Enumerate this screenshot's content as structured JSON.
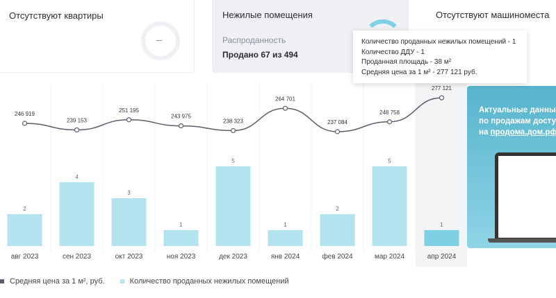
{
  "cards": [
    {
      "title": "Отсутствуют квартиры",
      "ring_value": "–"
    },
    {
      "title": "Нежилые помещения",
      "subtitle": "Распроданность",
      "sold": "Продано 67 из 494",
      "sold_fraction": 0.136
    },
    {
      "title": "Отсутствуют машиноместа"
    }
  ],
  "tooltip": {
    "lines": [
      "Количество проданных нежилых помещений - 1",
      "Количество ДДУ - 1",
      "Проданная площадь - 38 м²",
      "Средняя цена за 1 м² - 277 121 руб."
    ]
  },
  "promo": {
    "line1": "Актуальные данные",
    "line2": "по продажам доступ",
    "line3_prefix": "на ",
    "link": "продома.дом.рф"
  },
  "chart_data": {
    "type": "bar+line",
    "categories": [
      "авг 2023",
      "сен 2023",
      "окт 2023",
      "ноя 2023",
      "дек 2023",
      "янв 2024",
      "фев 2024",
      "мар 2024",
      "апр 2024"
    ],
    "series": [
      {
        "name": "Средняя цена за 1 м², руб.",
        "type": "line",
        "values": [
          246919,
          239153,
          251195,
          243975,
          238323,
          264701,
          237084,
          248758,
          277121
        ],
        "labels": [
          "246 919",
          "239 153",
          "251 195",
          "243 975",
          "238 323",
          "264 701",
          "237 084",
          "248 758",
          "277 121"
        ],
        "color": "#5b5d6b"
      },
      {
        "name": "Количество проданных нежилых помещений",
        "type": "bar",
        "values": [
          2,
          4,
          3,
          1,
          5,
          1,
          2,
          5,
          1
        ],
        "color": "#b3e3ee",
        "highlight_color": "#7fd0e3"
      }
    ],
    "highlighted": "апр 2024"
  }
}
